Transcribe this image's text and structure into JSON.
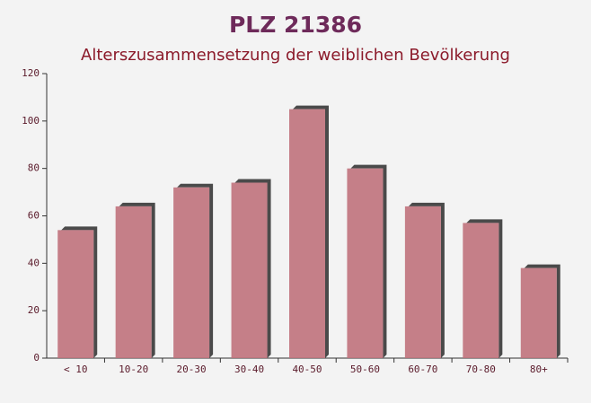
{
  "chart_data": {
    "type": "bar",
    "title": "PLZ 21386",
    "subtitle": "Alterszusammensetzung der weiblichen Bevölkerung",
    "categories": [
      "< 10",
      "10-20",
      "20-30",
      "30-40",
      "40-50",
      "50-60",
      "60-70",
      "70-80",
      "80+"
    ],
    "values": [
      54,
      64,
      72,
      74,
      105,
      80,
      64,
      57,
      38
    ],
    "color": "#c0727c",
    "ylim": [
      0,
      120
    ],
    "yticks": [
      0,
      20,
      40,
      60,
      80,
      100,
      120
    ]
  }
}
